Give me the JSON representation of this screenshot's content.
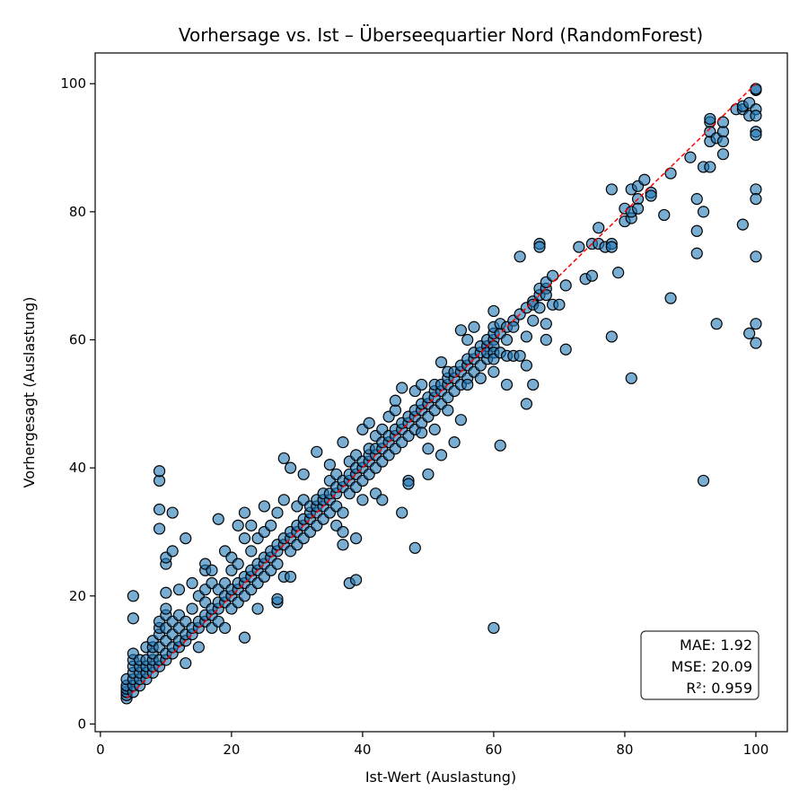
{
  "chart_data": {
    "type": "scatter",
    "title": "Vorhersage vs. Ist – Überseequartier Nord (RandomForest)",
    "xlabel": "Ist-Wert (Auslastung)",
    "ylabel": "Vorhergesagt (Auslastung)",
    "xlim": [
      -0.8,
      104.8
    ],
    "ylim": [
      -1.2,
      104.8
    ],
    "xticks": [
      0,
      20,
      40,
      60,
      80,
      100
    ],
    "yticks": [
      0,
      20,
      40,
      60,
      80,
      100
    ],
    "grid": false,
    "identity_line": {
      "from": [
        4,
        4
      ],
      "to": [
        100,
        100
      ],
      "color": "#ff0000",
      "style": "dashed"
    },
    "marker_color": "#1f77b4",
    "marker_edge_color": "#000000",
    "stats": [
      "MAE: 1.92",
      "MSE: 20.09",
      "R²: 0.959"
    ],
    "points": [
      [
        4,
        4
      ],
      [
        4,
        4.5
      ],
      [
        4,
        5
      ],
      [
        4,
        5.5
      ],
      [
        4,
        6
      ],
      [
        4,
        7
      ],
      [
        5,
        5
      ],
      [
        5,
        6
      ],
      [
        5,
        7
      ],
      [
        5,
        8
      ],
      [
        5,
        9
      ],
      [
        5,
        10
      ],
      [
        5,
        11
      ],
      [
        5,
        16.5
      ],
      [
        5,
        20
      ],
      [
        6,
        6
      ],
      [
        6,
        7
      ],
      [
        6,
        8
      ],
      [
        6,
        9
      ],
      [
        6,
        10
      ],
      [
        7,
        7
      ],
      [
        7,
        8
      ],
      [
        7,
        9
      ],
      [
        7,
        10
      ],
      [
        7,
        12
      ],
      [
        8,
        8
      ],
      [
        8,
        9
      ],
      [
        8,
        10
      ],
      [
        8,
        11
      ],
      [
        8,
        12
      ],
      [
        8,
        13
      ],
      [
        9,
        9
      ],
      [
        9,
        10
      ],
      [
        9,
        12
      ],
      [
        9,
        14
      ],
      [
        9,
        15
      ],
      [
        9,
        16
      ],
      [
        9,
        30.5
      ],
      [
        9,
        33.5
      ],
      [
        9,
        38
      ],
      [
        9,
        39.5
      ],
      [
        10,
        10
      ],
      [
        10,
        11
      ],
      [
        10,
        13
      ],
      [
        10,
        15
      ],
      [
        10,
        17
      ],
      [
        10,
        18
      ],
      [
        10,
        20.5
      ],
      [
        10,
        25
      ],
      [
        10,
        26
      ],
      [
        11,
        11
      ],
      [
        11,
        12
      ],
      [
        11,
        14
      ],
      [
        11,
        16
      ],
      [
        11,
        27
      ],
      [
        11,
        33
      ],
      [
        12,
        12
      ],
      [
        12,
        13
      ],
      [
        12,
        15
      ],
      [
        12,
        17
      ],
      [
        12,
        21
      ],
      [
        13,
        13
      ],
      [
        13,
        14
      ],
      [
        13,
        16
      ],
      [
        13,
        9.5
      ],
      [
        13,
        29
      ],
      [
        14,
        14
      ],
      [
        14,
        15
      ],
      [
        14,
        18
      ],
      [
        14,
        22
      ],
      [
        15,
        15
      ],
      [
        15,
        16
      ],
      [
        15,
        12
      ],
      [
        15,
        20
      ],
      [
        16,
        16
      ],
      [
        16,
        17
      ],
      [
        16,
        19
      ],
      [
        16,
        21
      ],
      [
        16,
        24
      ],
      [
        16,
        25
      ],
      [
        17,
        17
      ],
      [
        17,
        18
      ],
      [
        17,
        15
      ],
      [
        17,
        22
      ],
      [
        17,
        24
      ],
      [
        18,
        18
      ],
      [
        18,
        19
      ],
      [
        18,
        16
      ],
      [
        18,
        32
      ],
      [
        18,
        21
      ],
      [
        19,
        19
      ],
      [
        19,
        20
      ],
      [
        19,
        15
      ],
      [
        19,
        22
      ],
      [
        19,
        27
      ],
      [
        20,
        20
      ],
      [
        20,
        21
      ],
      [
        20,
        18
      ],
      [
        20,
        24
      ],
      [
        20,
        26
      ],
      [
        21,
        21
      ],
      [
        21,
        22
      ],
      [
        21,
        19
      ],
      [
        21,
        25
      ],
      [
        21,
        31
      ],
      [
        22,
        22
      ],
      [
        22,
        23
      ],
      [
        22,
        20
      ],
      [
        22,
        13.5
      ],
      [
        22,
        29
      ],
      [
        22,
        33
      ],
      [
        23,
        23
      ],
      [
        23,
        24
      ],
      [
        23,
        21
      ],
      [
        23,
        27
      ],
      [
        23,
        31
      ],
      [
        24,
        24
      ],
      [
        24,
        25
      ],
      [
        24,
        18
      ],
      [
        24,
        22
      ],
      [
        24,
        29
      ],
      [
        25,
        25
      ],
      [
        25,
        26
      ],
      [
        25,
        23
      ],
      [
        25,
        30
      ],
      [
        25,
        34
      ],
      [
        26,
        26
      ],
      [
        26,
        27
      ],
      [
        26,
        24
      ],
      [
        26,
        31
      ],
      [
        27,
        27
      ],
      [
        27,
        28
      ],
      [
        27,
        19
      ],
      [
        27,
        19.5
      ],
      [
        27,
        25
      ],
      [
        27,
        33
      ],
      [
        28,
        28
      ],
      [
        28,
        29
      ],
      [
        28,
        23
      ],
      [
        28,
        35
      ],
      [
        28,
        41.5
      ],
      [
        29,
        29
      ],
      [
        29,
        30
      ],
      [
        29,
        23
      ],
      [
        29,
        27
      ],
      [
        29,
        40
      ],
      [
        30,
        30
      ],
      [
        30,
        31
      ],
      [
        30,
        28
      ],
      [
        30,
        34
      ],
      [
        31,
        31
      ],
      [
        31,
        32
      ],
      [
        31,
        29
      ],
      [
        31,
        35
      ],
      [
        31,
        39
      ],
      [
        32,
        32
      ],
      [
        32,
        33
      ],
      [
        32,
        30
      ],
      [
        32,
        34
      ],
      [
        33,
        33
      ],
      [
        33,
        34
      ],
      [
        33,
        31
      ],
      [
        33,
        35
      ],
      [
        33,
        42.5
      ],
      [
        34,
        34
      ],
      [
        34,
        35
      ],
      [
        34,
        32
      ],
      [
        34,
        36
      ],
      [
        35,
        35
      ],
      [
        35,
        36
      ],
      [
        35,
        33
      ],
      [
        35,
        38
      ],
      [
        35,
        40.5
      ],
      [
        36,
        36
      ],
      [
        36,
        37
      ],
      [
        36,
        34
      ],
      [
        36,
        39
      ],
      [
        36,
        31
      ],
      [
        37,
        37
      ],
      [
        37,
        38
      ],
      [
        37,
        30
      ],
      [
        37,
        28
      ],
      [
        37,
        33
      ],
      [
        37,
        44
      ],
      [
        38,
        38
      ],
      [
        38,
        39
      ],
      [
        38,
        22
      ],
      [
        38,
        36
      ],
      [
        38,
        41
      ],
      [
        39,
        39
      ],
      [
        39,
        40
      ],
      [
        39,
        22.5
      ],
      [
        39,
        29
      ],
      [
        39,
        37
      ],
      [
        39,
        42
      ],
      [
        40,
        40
      ],
      [
        40,
        41
      ],
      [
        40,
        38
      ],
      [
        40,
        35
      ],
      [
        40,
        46
      ],
      [
        41,
        41
      ],
      [
        41,
        42
      ],
      [
        41,
        39
      ],
      [
        41,
        43
      ],
      [
        41,
        47
      ],
      [
        42,
        42
      ],
      [
        42,
        43
      ],
      [
        42,
        40
      ],
      [
        42,
        36
      ],
      [
        42,
        45
      ],
      [
        43,
        43
      ],
      [
        43,
        44
      ],
      [
        43,
        41
      ],
      [
        43,
        46
      ],
      [
        43,
        35
      ],
      [
        44,
        44
      ],
      [
        44,
        45
      ],
      [
        44,
        42
      ],
      [
        44,
        48
      ],
      [
        45,
        45
      ],
      [
        45,
        46
      ],
      [
        45,
        43
      ],
      [
        45,
        49
      ],
      [
        45,
        50.5
      ],
      [
        46,
        46
      ],
      [
        46,
        47
      ],
      [
        46,
        44
      ],
      [
        46,
        33
      ],
      [
        46,
        52.5
      ],
      [
        47,
        47
      ],
      [
        47,
        48
      ],
      [
        47,
        45
      ],
      [
        47,
        38
      ],
      [
        47,
        37.5
      ],
      [
        48,
        48
      ],
      [
        48,
        49
      ],
      [
        48,
        46
      ],
      [
        48,
        27.5
      ],
      [
        48,
        52
      ],
      [
        49,
        49
      ],
      [
        49,
        50
      ],
      [
        49,
        47
      ],
      [
        49,
        53
      ],
      [
        49,
        45.5
      ],
      [
        50,
        50
      ],
      [
        50,
        51
      ],
      [
        50,
        48
      ],
      [
        50,
        43
      ],
      [
        50,
        39
      ],
      [
        51,
        51
      ],
      [
        51,
        52
      ],
      [
        51,
        49
      ],
      [
        51,
        46
      ],
      [
        51,
        53
      ],
      [
        52,
        52
      ],
      [
        52,
        53
      ],
      [
        52,
        50
      ],
      [
        52,
        56.5
      ],
      [
        52,
        42
      ],
      [
        53,
        53
      ],
      [
        53,
        54
      ],
      [
        53,
        51
      ],
      [
        53,
        55
      ],
      [
        53,
        49
      ],
      [
        54,
        54
      ],
      [
        54,
        55
      ],
      [
        54,
        44
      ],
      [
        54,
        52
      ],
      [
        55,
        55
      ],
      [
        55,
        56
      ],
      [
        55,
        53
      ],
      [
        55,
        47.5
      ],
      [
        55,
        61.5
      ],
      [
        56,
        56
      ],
      [
        56,
        57
      ],
      [
        56,
        54
      ],
      [
        56,
        60
      ],
      [
        56,
        53
      ],
      [
        57,
        57
      ],
      [
        57,
        58
      ],
      [
        57,
        55
      ],
      [
        57,
        62
      ],
      [
        58,
        58
      ],
      [
        58,
        59
      ],
      [
        58,
        56
      ],
      [
        58,
        54
      ],
      [
        59,
        59
      ],
      [
        59,
        60
      ],
      [
        59,
        57
      ],
      [
        59,
        58
      ],
      [
        60,
        60
      ],
      [
        60,
        61
      ],
      [
        60,
        59
      ],
      [
        60,
        58
      ],
      [
        60,
        62
      ],
      [
        60,
        64.5
      ],
      [
        60,
        15
      ],
      [
        60,
        57
      ],
      [
        60,
        55
      ],
      [
        61,
        61
      ],
      [
        61,
        62.5
      ],
      [
        61,
        58
      ],
      [
        61,
        43.5
      ],
      [
        62,
        62
      ],
      [
        62,
        57.5
      ],
      [
        62,
        53
      ],
      [
        62,
        60
      ],
      [
        63,
        63
      ],
      [
        63,
        62
      ],
      [
        63,
        57.5
      ],
      [
        64,
        64
      ],
      [
        64,
        57.5
      ],
      [
        64,
        73
      ],
      [
        65,
        65
      ],
      [
        65,
        60.5
      ],
      [
        65,
        56
      ],
      [
        65,
        50
      ],
      [
        66,
        66
      ],
      [
        66,
        65.5
      ],
      [
        66,
        63
      ],
      [
        66,
        53
      ],
      [
        67,
        67
      ],
      [
        67,
        68
      ],
      [
        67,
        75
      ],
      [
        67,
        65
      ],
      [
        67,
        74.5
      ],
      [
        68,
        68
      ],
      [
        68,
        67
      ],
      [
        68,
        62.5
      ],
      [
        68,
        69
      ],
      [
        68,
        60
      ],
      [
        69,
        70
      ],
      [
        69,
        65.5
      ],
      [
        70,
        65.5
      ],
      [
        71,
        68.5
      ],
      [
        71,
        58.5
      ],
      [
        73,
        74.5
      ],
      [
        74,
        69.5
      ],
      [
        75,
        75
      ],
      [
        75,
        70
      ],
      [
        76,
        77.5
      ],
      [
        76,
        75
      ],
      [
        77,
        74.5
      ],
      [
        78,
        75
      ],
      [
        78,
        74.5
      ],
      [
        78,
        83.5
      ],
      [
        78,
        60.5
      ],
      [
        79,
        70.5
      ],
      [
        80,
        80.5
      ],
      [
        80,
        78.5
      ],
      [
        81,
        79
      ],
      [
        81,
        80
      ],
      [
        81,
        83.5
      ],
      [
        81,
        54
      ],
      [
        82,
        82
      ],
      [
        82,
        80.5
      ],
      [
        82,
        84
      ],
      [
        83,
        85
      ],
      [
        84,
        83
      ],
      [
        84,
        82.5
      ],
      [
        86,
        79.5
      ],
      [
        87,
        86
      ],
      [
        87,
        66.5
      ],
      [
        90,
        88.5
      ],
      [
        91,
        82
      ],
      [
        91,
        77
      ],
      [
        91,
        73.5
      ],
      [
        92,
        87
      ],
      [
        92,
        80
      ],
      [
        92,
        38
      ],
      [
        93,
        91
      ],
      [
        93,
        94
      ],
      [
        93,
        94.5
      ],
      [
        93,
        92.5
      ],
      [
        93,
        87
      ],
      [
        94,
        91.5
      ],
      [
        94,
        62.5
      ],
      [
        95,
        92.5
      ],
      [
        95,
        94
      ],
      [
        95,
        89
      ],
      [
        95,
        91
      ],
      [
        97,
        96
      ],
      [
        98,
        96
      ],
      [
        98,
        96.5
      ],
      [
        98,
        78
      ],
      [
        99,
        95
      ],
      [
        99,
        97
      ],
      [
        99,
        61
      ],
      [
        100,
        99
      ],
      [
        100,
        99.2
      ],
      [
        100,
        96
      ],
      [
        100,
        95
      ],
      [
        100,
        92.5
      ],
      [
        100,
        92
      ],
      [
        100,
        83.5
      ],
      [
        100,
        82
      ],
      [
        100,
        73
      ],
      [
        100,
        62.5
      ],
      [
        100,
        59.5
      ]
    ]
  }
}
